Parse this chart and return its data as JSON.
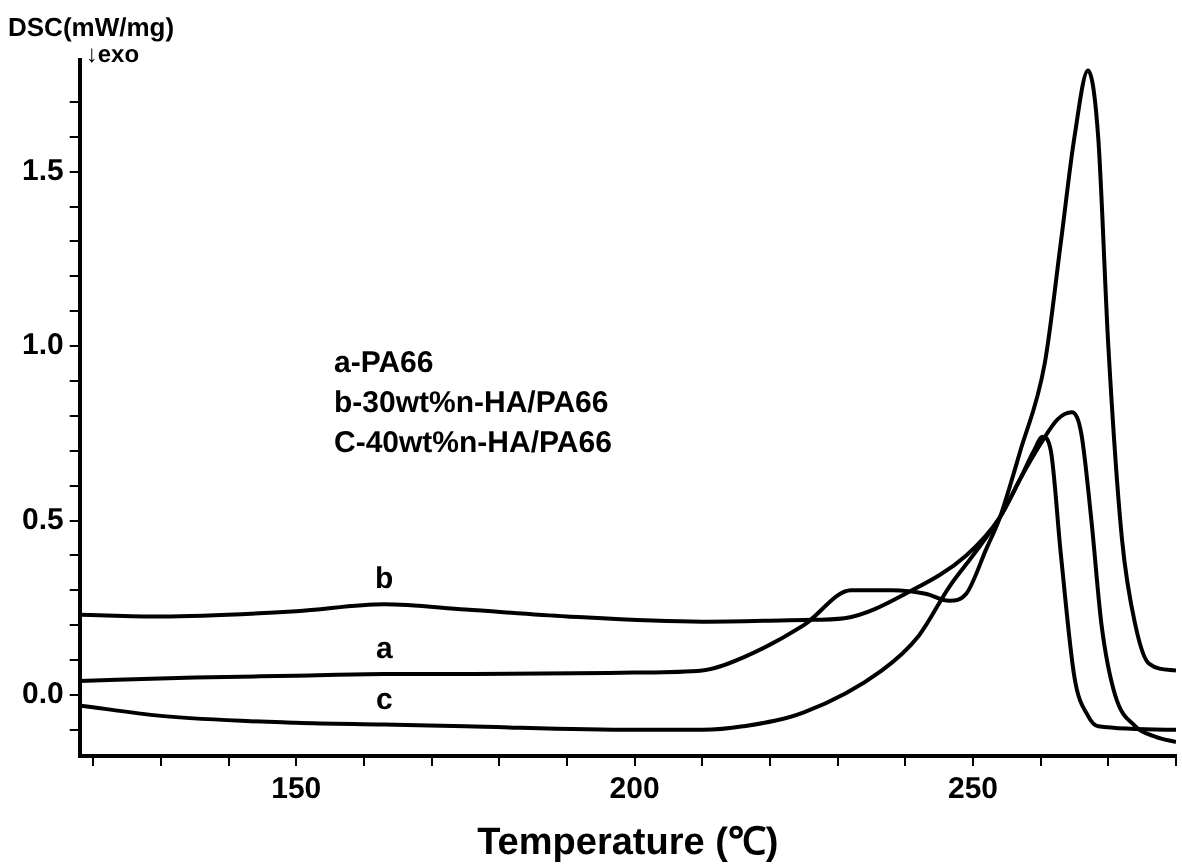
{
  "chart_data": {
    "type": "line",
    "xlabel": "Temperature (℃)",
    "ylabel": "DSC(mW/mg)",
    "annotations": [
      "↓exo",
      "a-PA66",
      "b-30wt%n-HA/PA66",
      "C-40wt%n-HA/PA66"
    ],
    "xlim": [
      118,
      280
    ],
    "ylim": [
      -0.175,
      1.82
    ],
    "xticks": [
      {
        "value": 120,
        "label": null
      },
      {
        "value": 130,
        "label": null
      },
      {
        "value": 140,
        "label": null
      },
      150,
      {
        "value": 160,
        "label": null
      },
      {
        "value": 170,
        "label": null
      },
      {
        "value": 180,
        "label": null
      },
      {
        "value": 190,
        "label": null
      },
      200,
      {
        "value": 210,
        "label": null
      },
      {
        "value": 220,
        "label": null
      },
      {
        "value": 230,
        "label": null
      },
      {
        "value": 240,
        "label": null
      },
      250,
      {
        "value": 260,
        "label": null
      },
      {
        "value": 270,
        "label": null
      },
      {
        "value": 280,
        "label": null
      }
    ],
    "yticks": [
      {
        "value": -0.1,
        "label": null
      },
      {
        "value": 0,
        "label": "0.0"
      },
      {
        "value": 0.1,
        "label": null
      },
      {
        "value": 0.2,
        "label": null
      },
      {
        "value": 0.3,
        "label": null
      },
      {
        "value": 0.4,
        "label": null
      },
      {
        "value": 0.5,
        "label": "0.5"
      },
      {
        "value": 0.6,
        "label": null
      },
      {
        "value": 0.7,
        "label": null
      },
      {
        "value": 0.8,
        "label": null
      },
      {
        "value": 0.9,
        "label": null
      },
      {
        "value": 1,
        "label": "1.0"
      },
      {
        "value": 1.1,
        "label": null
      },
      {
        "value": 1.2,
        "label": null
      },
      {
        "value": 1.3,
        "label": null
      },
      {
        "value": 1.4,
        "label": null
      },
      {
        "value": 1.5,
        "label": "1.5"
      },
      {
        "value": 1.6,
        "label": null
      },
      {
        "value": 1.7,
        "label": null
      }
    ],
    "grid": false,
    "legend": false,
    "marker": "none",
    "line_style": "solid",
    "series": [
      {
        "name": "a",
        "color": "#000000",
        "x": [
          118,
          135,
          150,
          163,
          175,
          200,
          210,
          216,
          225,
          232,
          238,
          243,
          246.5,
          249,
          252,
          254,
          257,
          260.6,
          263,
          265,
          267,
          268.5,
          270,
          272,
          274,
          276,
          280
        ],
        "values": [
          0.04,
          0.05,
          0.055,
          0.06,
          0.06,
          0.064,
          0.07,
          0.107,
          0.2,
          0.3,
          0.3,
          0.29,
          0.27,
          0.29,
          0.42,
          0.51,
          0.7,
          0.95,
          1.3,
          1.6,
          1.79,
          1.6,
          1.0,
          0.45,
          0.2,
          0.09,
          0.07
        ]
      },
      {
        "name": "b",
        "color": "#000000",
        "x": [
          118,
          130,
          150,
          163,
          175,
          190,
          210,
          225,
          231,
          241,
          249,
          254,
          257,
          260,
          262.5,
          264.6,
          266,
          267.5,
          269,
          271,
          274,
          277,
          280
        ],
        "values": [
          0.23,
          0.225,
          0.24,
          0.26,
          0.245,
          0.225,
          0.21,
          0.215,
          0.22,
          0.3,
          0.4,
          0.51,
          0.62,
          0.72,
          0.79,
          0.81,
          0.75,
          0.5,
          0.2,
          0.0,
          -0.09,
          -0.12,
          -0.135
        ]
      },
      {
        "name": "c",
        "color": "#000000",
        "x": [
          118,
          130,
          150,
          163,
          175,
          200,
          210,
          216,
          225,
          236.5,
          242,
          246.5,
          250,
          254,
          257,
          259,
          260.3,
          261.5,
          263,
          265,
          267,
          268.5,
          280
        ],
        "values": [
          -0.03,
          -0.06,
          -0.08,
          -0.085,
          -0.09,
          -0.1,
          -0.1,
          -0.09,
          -0.05,
          0.07,
          0.17,
          0.31,
          0.4,
          0.51,
          0.62,
          0.7,
          0.74,
          0.7,
          0.4,
          0.05,
          -0.06,
          -0.09,
          -0.1
        ]
      }
    ]
  }
}
